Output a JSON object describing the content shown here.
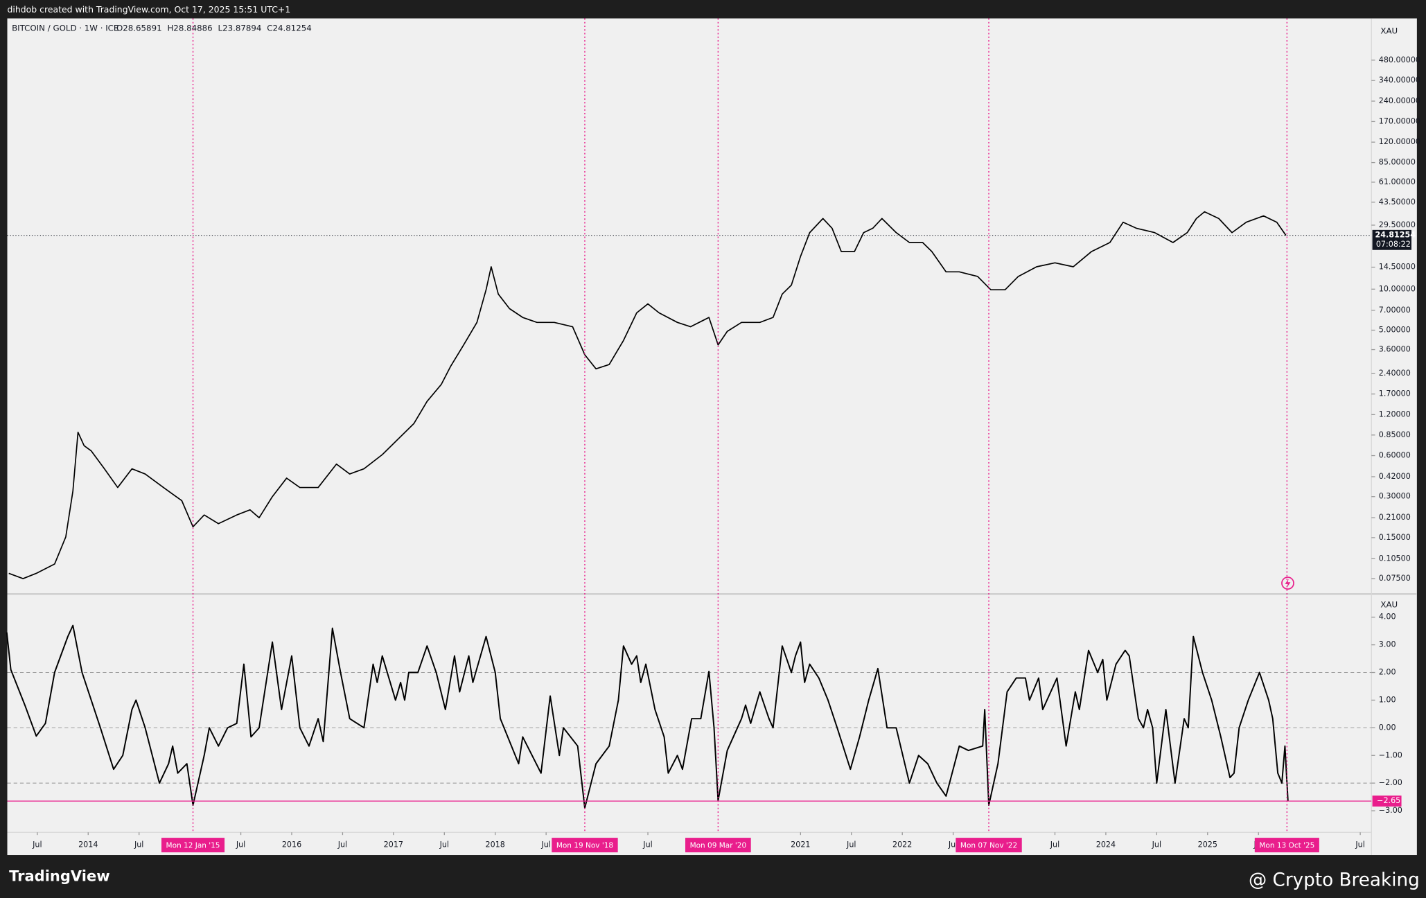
{
  "header": "dihdob created with TradingView.com, Oct 17, 2025 15:51 UTC+1",
  "footer": {
    "logo": "TradingView",
    "credit": "@ Crypto Breaking"
  },
  "chart_data": [
    {
      "type": "line",
      "title": "BITCOIN / GOLD · 1W · ICE",
      "legend_values": [
        "O28.65891",
        "H28.84886",
        "L23.87894",
        "C24.81254"
      ],
      "axis_label": "XAU",
      "log_scale": true,
      "color": "#000000",
      "xlim": [
        2013.205,
        2026.61
      ],
      "ylim": [
        0.0596,
        972
      ],
      "yticks": [
        {
          "value": 480,
          "label": "480.00000"
        },
        {
          "value": 340,
          "label": "340.00000"
        },
        {
          "value": 240,
          "label": "240.00000"
        },
        {
          "value": 170,
          "label": "170.00000"
        },
        {
          "value": 120,
          "label": "120.00000"
        },
        {
          "value": 85,
          "label": "85.00000"
        },
        {
          "value": 61,
          "label": "61.00000"
        },
        {
          "value": 43.5,
          "label": "43.50000"
        },
        {
          "value": 29.5,
          "label": "29.50000"
        },
        {
          "value": 14.5,
          "label": "14.50000"
        },
        {
          "value": 10,
          "label": "10.00000"
        },
        {
          "value": 7,
          "label": "7.00000"
        },
        {
          "value": 5,
          "label": "5.00000"
        },
        {
          "value": 3.6,
          "label": "3.60000"
        },
        {
          "value": 2.4,
          "label": "2.40000"
        },
        {
          "value": 1.7,
          "label": "1.70000"
        },
        {
          "value": 1.2,
          "label": "1.20000"
        },
        {
          "value": 0.85,
          "label": "0.85000"
        },
        {
          "value": 0.6,
          "label": "0.60000"
        },
        {
          "value": 0.42,
          "label": "0.42000"
        },
        {
          "value": 0.3,
          "label": "0.30000"
        },
        {
          "value": 0.21,
          "label": "0.21000"
        },
        {
          "value": 0.15,
          "label": "0.15000"
        },
        {
          "value": 0.105,
          "label": "0.10500"
        },
        {
          "value": 0.075,
          "label": "0.07500"
        }
      ],
      "last_price": 24.81254,
      "countdown": "07:08:22",
      "x": [
        2013.22,
        2013.36,
        2013.49,
        2013.67,
        2013.78,
        2013.85,
        2013.9,
        2013.96,
        2014.03,
        2014.16,
        2014.29,
        2014.43,
        2014.56,
        2014.74,
        2014.92,
        2015.03,
        2015.14,
        2015.28,
        2015.46,
        2015.59,
        2015.68,
        2015.81,
        2015.95,
        2016.08,
        2016.26,
        2016.44,
        2016.57,
        2016.71,
        2016.89,
        2017.02,
        2017.2,
        2017.33,
        2017.47,
        2017.56,
        2017.69,
        2017.82,
        2017.91,
        2017.96,
        2018.03,
        2018.14,
        2018.27,
        2018.41,
        2018.58,
        2018.76,
        2018.88,
        2018.99,
        2019.12,
        2019.26,
        2019.39,
        2019.5,
        2019.61,
        2019.79,
        2019.92,
        2020.1,
        2020.19,
        2020.28,
        2020.42,
        2020.6,
        2020.73,
        2020.82,
        2020.91,
        2021.0,
        2021.09,
        2021.22,
        2021.31,
        2021.4,
        2021.53,
        2021.62,
        2021.71,
        2021.8,
        2021.94,
        2022.07,
        2022.2,
        2022.29,
        2022.43,
        2022.56,
        2022.74,
        2022.87,
        2023.01,
        2023.14,
        2023.32,
        2023.5,
        2023.68,
        2023.86,
        2024.04,
        2024.17,
        2024.3,
        2024.48,
        2024.66,
        2024.8,
        2024.89,
        2024.97,
        2025.11,
        2025.24,
        2025.38,
        2025.55,
        2025.68,
        2025.77
      ],
      "values": [
        0.082,
        0.075,
        0.082,
        0.096,
        0.152,
        0.33,
        0.89,
        0.71,
        0.65,
        0.48,
        0.35,
        0.48,
        0.44,
        0.35,
        0.28,
        0.18,
        0.22,
        0.19,
        0.22,
        0.24,
        0.21,
        0.3,
        0.41,
        0.35,
        0.35,
        0.52,
        0.44,
        0.48,
        0.61,
        0.76,
        1.03,
        1.5,
        2.0,
        2.7,
        3.9,
        5.7,
        9.9,
        14.6,
        9.2,
        7.2,
        6.2,
        5.7,
        5.7,
        5.3,
        3.3,
        2.6,
        2.8,
        4.2,
        6.7,
        7.8,
        6.7,
        5.7,
        5.3,
        6.2,
        3.9,
        4.9,
        5.7,
        5.7,
        6.2,
        9.2,
        10.7,
        17.4,
        26,
        33,
        28,
        18.9,
        18.9,
        26,
        28,
        33,
        26,
        22,
        22,
        18.9,
        13.4,
        13.4,
        12.4,
        9.9,
        9.9,
        12.4,
        14.6,
        15.6,
        14.6,
        18.9,
        22,
        31,
        28,
        26,
        22,
        26,
        33,
        37,
        33,
        26,
        31,
        34.5,
        31,
        24.81
      ]
    },
    {
      "type": "line",
      "axis_label": "XAU",
      "color": "#000000",
      "xlim": [
        2013.205,
        2026.61
      ],
      "ylim": [
        -3.78,
        4.77
      ],
      "yticks": [
        {
          "value": 4,
          "label": "4.00"
        },
        {
          "value": 3,
          "label": "3.00"
        },
        {
          "value": 2,
          "label": "2.00"
        },
        {
          "value": 1,
          "label": "1.00"
        },
        {
          "value": 0,
          "label": "0.00"
        },
        {
          "value": -1,
          "label": "−1.00"
        },
        {
          "value": -2,
          "label": "−2.00"
        },
        {
          "value": -3,
          "label": "−3.00"
        }
      ],
      "grid_lines": [
        2,
        0,
        -2
      ],
      "last_value": {
        "value": -2.65,
        "label": "−2.65"
      },
      "xticks": [
        {
          "value": 2013.5,
          "label": "Jul"
        },
        2014,
        {
          "value": 2014.5,
          "label": "Jul"
        },
        {
          "value": 2015.5,
          "label": "Jul"
        },
        2016,
        {
          "value": 2016.5,
          "label": "Jul"
        },
        2017,
        {
          "value": 2017.5,
          "label": "Jul"
        },
        2018,
        {
          "value": 2018.5,
          "label": "Jul"
        },
        {
          "value": 2019.5,
          "label": "Jul"
        },
        2021,
        {
          "value": 2021.5,
          "label": "Jul"
        },
        2022,
        {
          "value": 2022.5,
          "label": "Jul"
        },
        {
          "value": 2023.5,
          "label": "Jul"
        },
        2024,
        {
          "value": 2024.5,
          "label": "Jul"
        },
        2025,
        {
          "value": 2025.5,
          "label": "Jul"
        },
        {
          "value": 2026.5,
          "label": "Jul"
        }
      ],
      "markers": [
        {
          "value": 2015.03,
          "label": "Mon 12 Jan '15"
        },
        {
          "value": 2018.88,
          "label": "Mon 19 Nov '18"
        },
        {
          "value": 2020.19,
          "label": "Mon 09 Mar '20"
        },
        {
          "value": 2022.85,
          "label": "Mon 07 Nov '22"
        },
        {
          "value": 2025.78,
          "label": "Mon 13 Oct '25"
        }
      ],
      "marker_color": "#e91e8c",
      "x": [
        2013.2,
        2013.24,
        2013.38,
        2013.49,
        2013.58,
        2013.67,
        2013.8,
        2013.85,
        2013.94,
        2014.03,
        2014.12,
        2014.25,
        2014.34,
        2014.43,
        2014.47,
        2014.56,
        2014.7,
        2014.79,
        2014.83,
        2014.88,
        2014.97,
        2015.03,
        2015.14,
        2015.19,
        2015.28,
        2015.37,
        2015.46,
        2015.53,
        2015.6,
        2015.68,
        2015.81,
        2015.9,
        2016.0,
        2016.08,
        2016.17,
        2016.26,
        2016.31,
        2016.4,
        2016.48,
        2016.57,
        2016.71,
        2016.8,
        2016.84,
        2016.89,
        2017.02,
        2017.07,
        2017.11,
        2017.15,
        2017.24,
        2017.33,
        2017.42,
        2017.51,
        2017.6,
        2017.65,
        2017.74,
        2017.78,
        2017.91,
        2018.0,
        2018.05,
        2018.23,
        2018.27,
        2018.45,
        2018.54,
        2018.63,
        2018.67,
        2018.81,
        2018.88,
        2018.99,
        2019.12,
        2019.21,
        2019.26,
        2019.34,
        2019.39,
        2019.43,
        2019.48,
        2019.57,
        2019.66,
        2019.7,
        2019.79,
        2019.84,
        2019.93,
        2020.02,
        2020.1,
        2020.15,
        2020.19,
        2020.28,
        2020.42,
        2020.46,
        2020.51,
        2020.6,
        2020.69,
        2020.73,
        2020.82,
        2020.91,
        2020.95,
        2021.0,
        2021.04,
        2021.09,
        2021.18,
        2021.27,
        2021.36,
        2021.49,
        2021.58,
        2021.67,
        2021.76,
        2021.85,
        2021.94,
        2022.07,
        2022.16,
        2022.25,
        2022.34,
        2022.43,
        2022.56,
        2022.65,
        2022.79,
        2022.81,
        2022.85,
        2022.94,
        2023.03,
        2023.12,
        2023.21,
        2023.25,
        2023.34,
        2023.38,
        2023.52,
        2023.61,
        2023.7,
        2023.74,
        2023.83,
        2023.92,
        2023.97,
        2024.01,
        2024.1,
        2024.19,
        2024.23,
        2024.32,
        2024.37,
        2024.41,
        2024.46,
        2024.5,
        2024.59,
        2024.68,
        2024.77,
        2024.81,
        2024.86,
        2024.95,
        2025.04,
        2025.13,
        2025.22,
        2025.26,
        2025.31,
        2025.4,
        2025.51,
        2025.6,
        2025.64,
        2025.69,
        2025.73,
        2025.76,
        2025.79
      ],
      "values": [
        3.45,
        2.1,
        0.8,
        -0.3,
        0.16,
        2.0,
        3.3,
        3.7,
        2.0,
        1.0,
        0,
        -1.5,
        -1.0,
        0.66,
        1.0,
        0,
        -2.0,
        -1.3,
        -0.66,
        -1.64,
        -1.3,
        -2.8,
        -1.0,
        0,
        -0.66,
        0,
        0.16,
        2.3,
        -0.33,
        0,
        3.1,
        0.66,
        2.6,
        0,
        -0.66,
        0.33,
        -0.5,
        3.6,
        2.0,
        0.33,
        0,
        2.3,
        1.64,
        2.6,
        1.0,
        1.64,
        1.0,
        2.0,
        2.0,
        2.96,
        2.0,
        0.66,
        2.6,
        1.3,
        2.6,
        1.64,
        3.3,
        2.0,
        0.33,
        -1.3,
        -0.33,
        -1.64,
        1.15,
        -1.0,
        0,
        -0.66,
        -2.9,
        -1.3,
        -0.66,
        1.0,
        2.96,
        2.3,
        2.6,
        1.64,
        2.3,
        0.66,
        -0.33,
        -1.64,
        -1.0,
        -1.5,
        0.33,
        0.33,
        2.04,
        0,
        -2.63,
        -0.82,
        0.33,
        0.82,
        0.16,
        1.3,
        0.33,
        0,
        2.96,
        2.0,
        2.6,
        3.1,
        1.64,
        2.3,
        1.8,
        1.0,
        0,
        -1.5,
        -0.33,
        1.0,
        2.14,
        0,
        0,
        -2.0,
        -1.0,
        -1.3,
        -2.0,
        -2.47,
        -0.66,
        -0.82,
        -0.66,
        0.66,
        -2.8,
        -1.3,
        1.3,
        1.8,
        1.8,
        1.0,
        1.8,
        0.66,
        1.8,
        -0.66,
        1.3,
        0.66,
        2.8,
        2.0,
        2.47,
        1.0,
        2.3,
        2.8,
        2.6,
        0.33,
        0,
        0.66,
        0,
        -2.0,
        0.66,
        -2.0,
        0.33,
        0,
        3.3,
        2.0,
        1.0,
        -0.33,
        -1.8,
        -1.64,
        0,
        1.0,
        2.0,
        1.0,
        0.33,
        -1.64,
        -2.0,
        -0.66,
        -2.65
      ]
    }
  ]
}
